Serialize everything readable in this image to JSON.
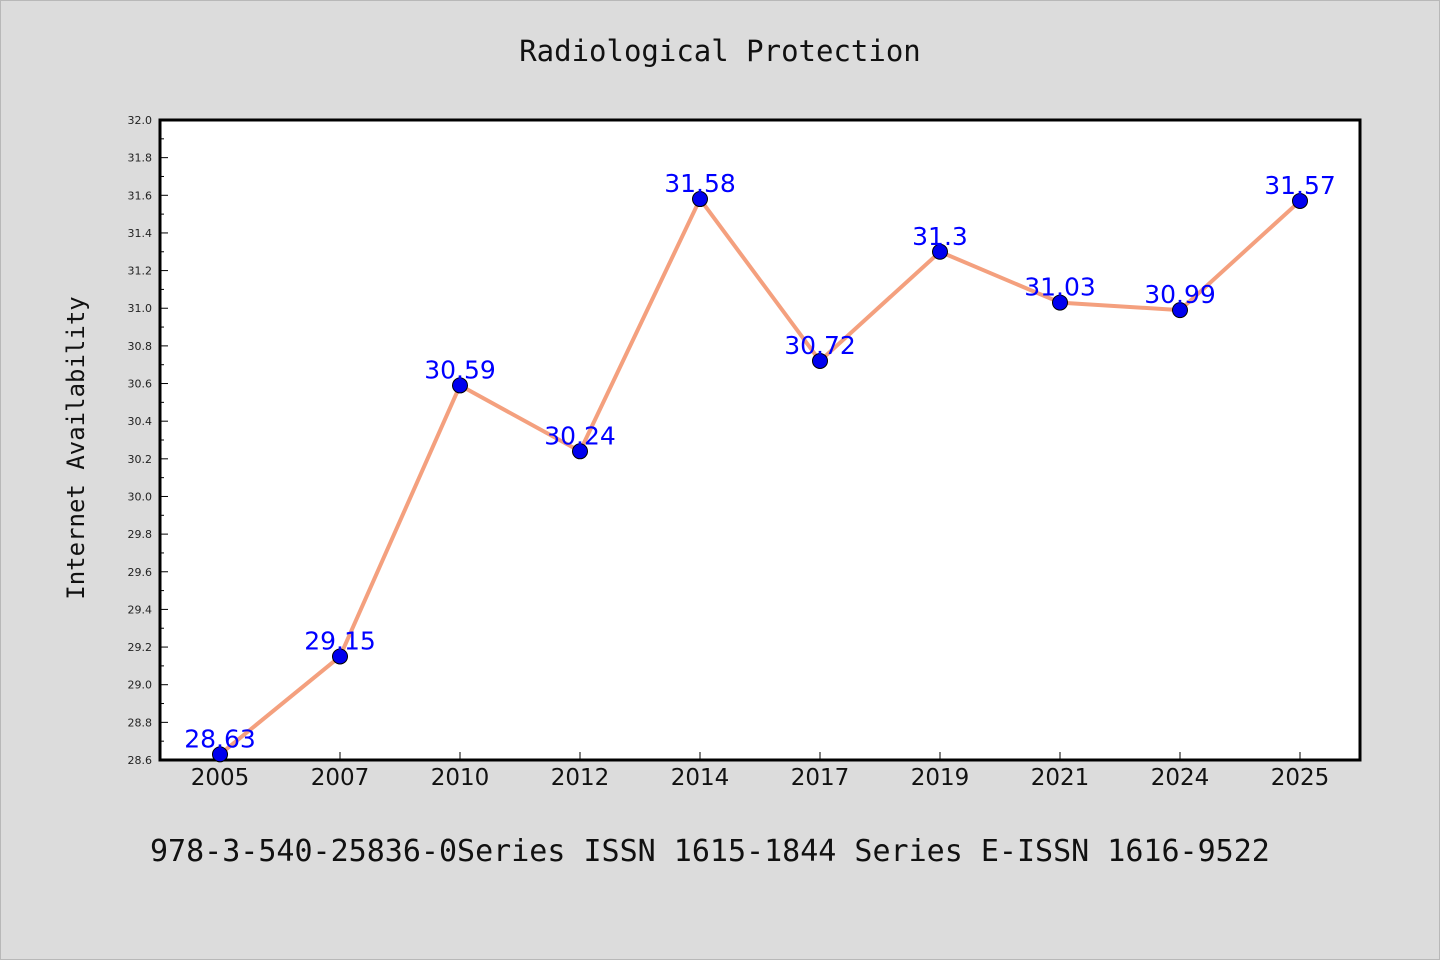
{
  "chart_data": {
    "type": "line",
    "title": "Radiological Protection",
    "ylabel": "Internet Availability",
    "xlabel": "",
    "categories": [
      "2005",
      "2007",
      "2010",
      "2012",
      "2014",
      "2017",
      "2019",
      "2021",
      "2024",
      "2025"
    ],
    "values": [
      28.63,
      29.15,
      30.59,
      30.24,
      31.58,
      30.72,
      31.3,
      31.03,
      30.99,
      31.57
    ],
    "data_labels": [
      "28.63",
      "29.15",
      "30.59",
      "30.24",
      "31.58",
      "30.72",
      "31.3",
      "31.03",
      "30.99",
      "31.57"
    ],
    "ylim": [
      28.6,
      32.0
    ],
    "yticks": [
      "28.6",
      "28.8",
      "29.0",
      "29.2",
      "29.4",
      "29.6",
      "29.8",
      "30.0",
      "30.2",
      "30.4",
      "30.6",
      "30.8",
      "31.0",
      "31.2",
      "31.4",
      "31.6",
      "31.8",
      "32.0"
    ],
    "grid": false,
    "line_color": "#f4a07e",
    "marker_color": "#0000ee",
    "label_color": "#0000ff"
  },
  "footer": "978-3-540-25836-0Series ISSN 1615-1844 Series E-ISSN 1616-9522"
}
